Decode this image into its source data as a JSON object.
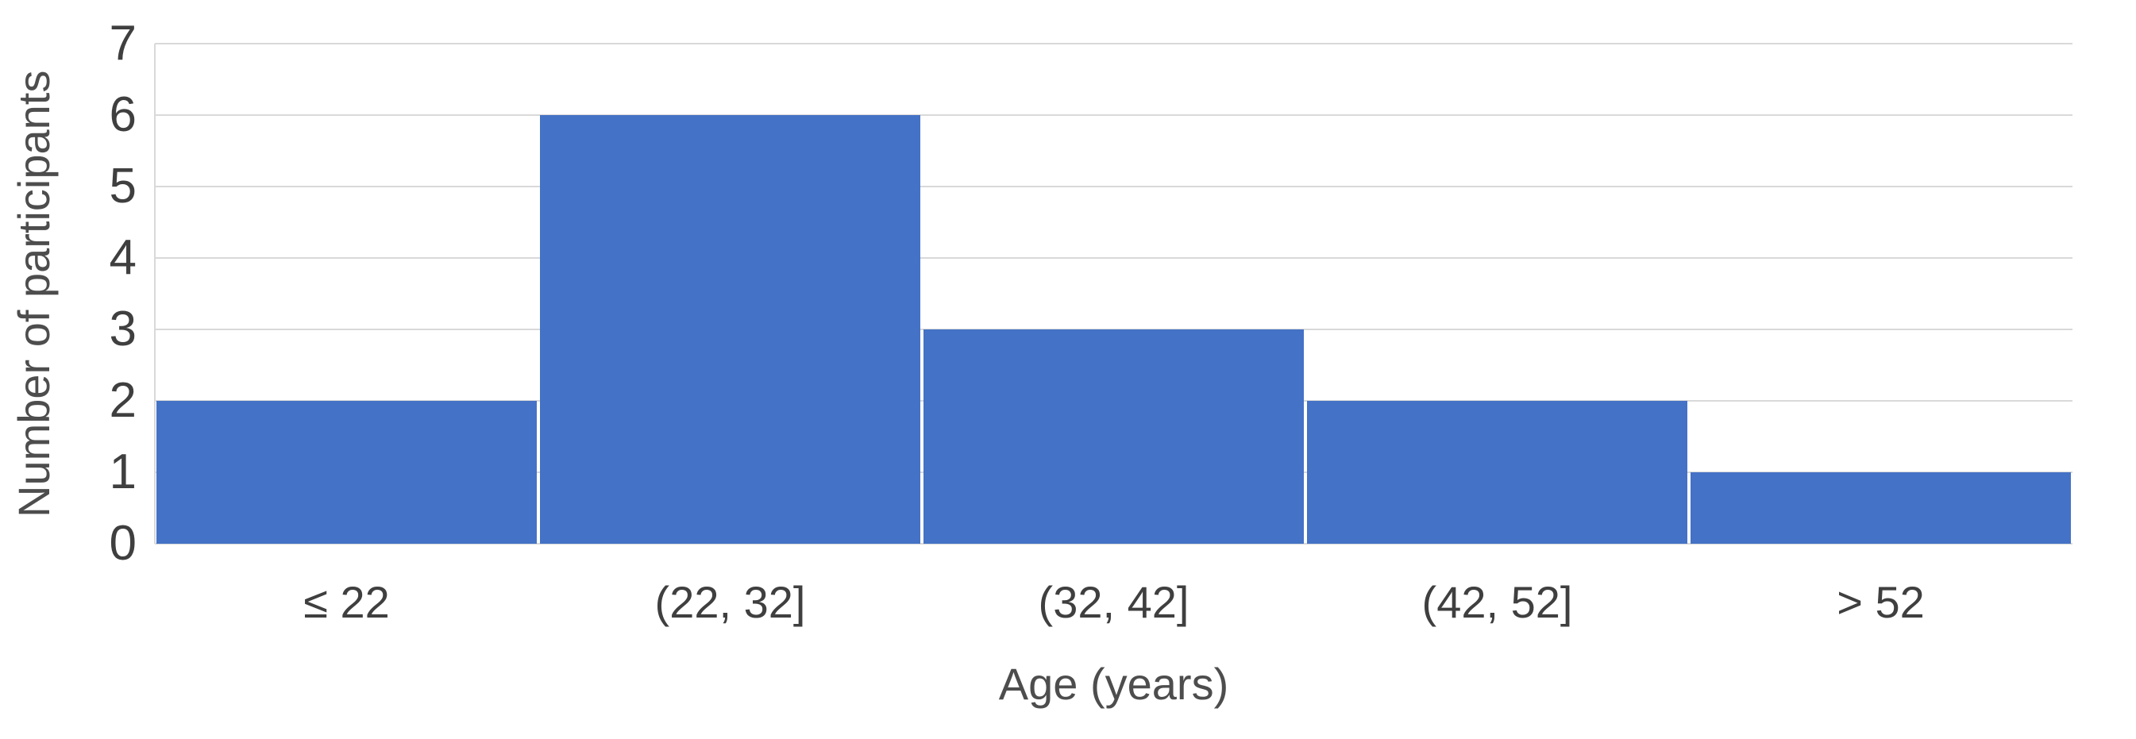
{
  "chart_data": {
    "type": "bar",
    "title": "",
    "categories": [
      "≤ 22",
      "(22, 32]",
      "(32, 42]",
      "(42, 52]",
      "> 52"
    ],
    "values": [
      2,
      6,
      3,
      2,
      1
    ],
    "xlabel": "Age (years)",
    "ylabel": "Number of participants",
    "ylim": [
      0,
      7
    ],
    "yticks": [
      0,
      1,
      2,
      3,
      4,
      5,
      6,
      7
    ],
    "grid": "horizontal",
    "legend_position": "none",
    "bar_color": "#4472c6",
    "gridline_color": "#d9d9d9",
    "axis_line_color": "#d9d9d9",
    "tick_label_color": "#3f3f3f",
    "axis_title_color": "#4d4d4d"
  }
}
